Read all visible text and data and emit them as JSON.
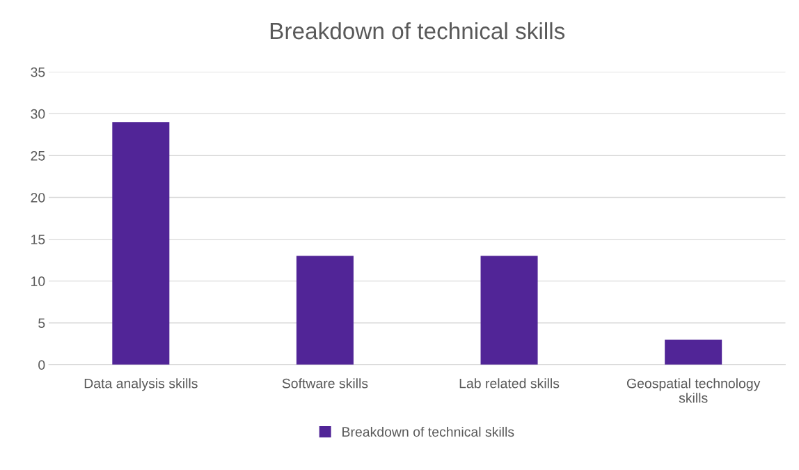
{
  "chart_data": {
    "type": "bar",
    "title": "Breakdown of technical skills",
    "categories": [
      "Data analysis skills",
      "Software skills",
      "Lab related skills",
      "Geospatial technology skills"
    ],
    "series": [
      {
        "name": "Breakdown of technical skills",
        "color": "#512597",
        "values": [
          29,
          13,
          13,
          3
        ]
      }
    ],
    "ylim": [
      0,
      35
    ],
    "yticks": [
      0,
      5,
      10,
      15,
      20,
      25,
      30,
      35
    ],
    "grid": "y",
    "legend": "bottom"
  }
}
